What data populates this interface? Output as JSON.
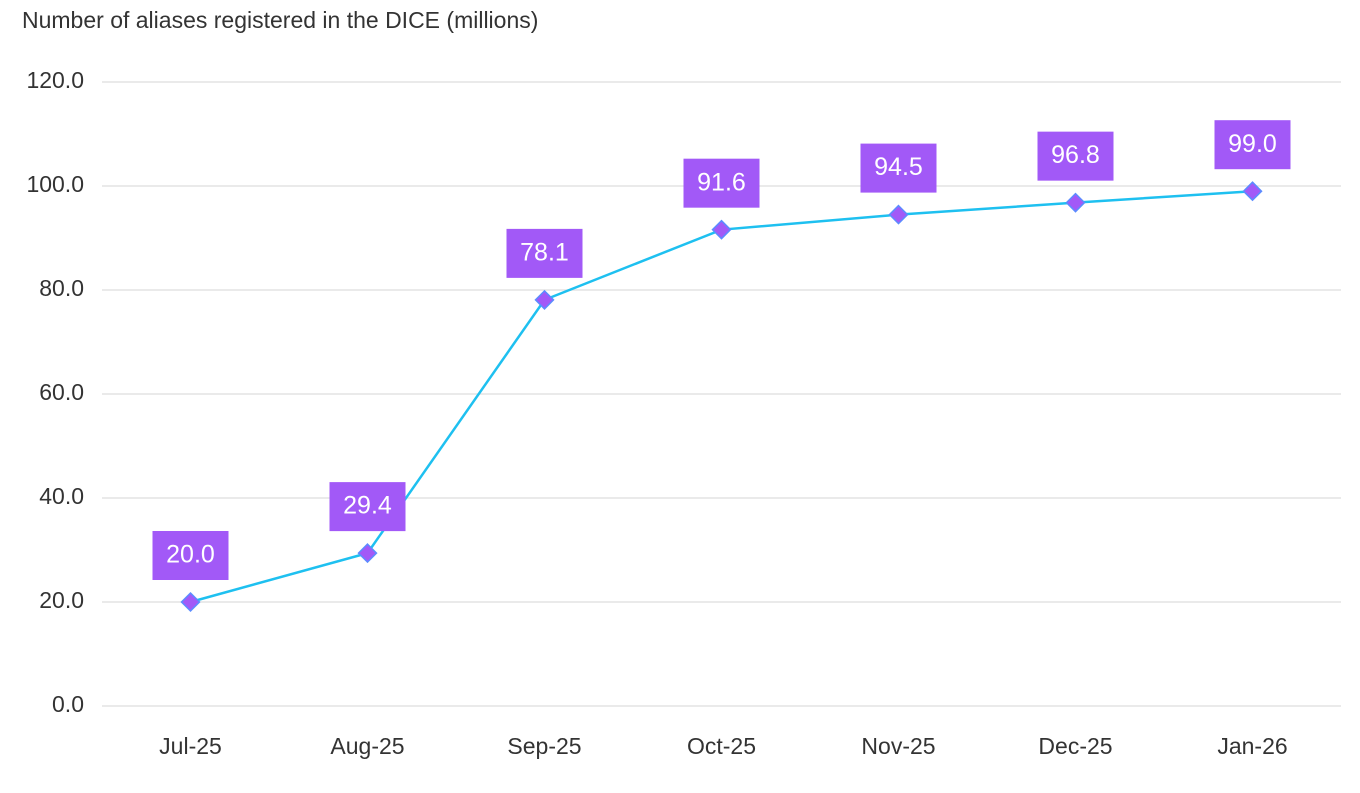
{
  "chart_data": {
    "type": "line",
    "title": "Number of aliases registered in the DICE (millions)",
    "categories": [
      "Jul-25",
      "Aug-25",
      "Sep-25",
      "Oct-25",
      "Nov-25",
      "Dec-25",
      "Jan-26"
    ],
    "values": [
      20.0,
      29.4,
      78.1,
      91.6,
      94.5,
      96.8,
      99.0
    ],
    "value_labels": [
      "20.0",
      "29.4",
      "78.1",
      "91.6",
      "94.5",
      "96.8",
      "99.0"
    ],
    "color": "#1ec0f0",
    "marker_color": "#a259f7",
    "ylim": [
      0,
      120
    ],
    "yticks": [
      {
        "value": 0,
        "label": "0.0"
      },
      {
        "value": 20,
        "label": "20.0"
      },
      {
        "value": 40,
        "label": "40.0"
      },
      {
        "value": 60,
        "label": "60.0"
      },
      {
        "value": 80,
        "label": "80.0"
      },
      {
        "value": 100,
        "label": "100.0"
      },
      {
        "value": 120,
        "label": "120.0"
      }
    ],
    "grid": true
  }
}
